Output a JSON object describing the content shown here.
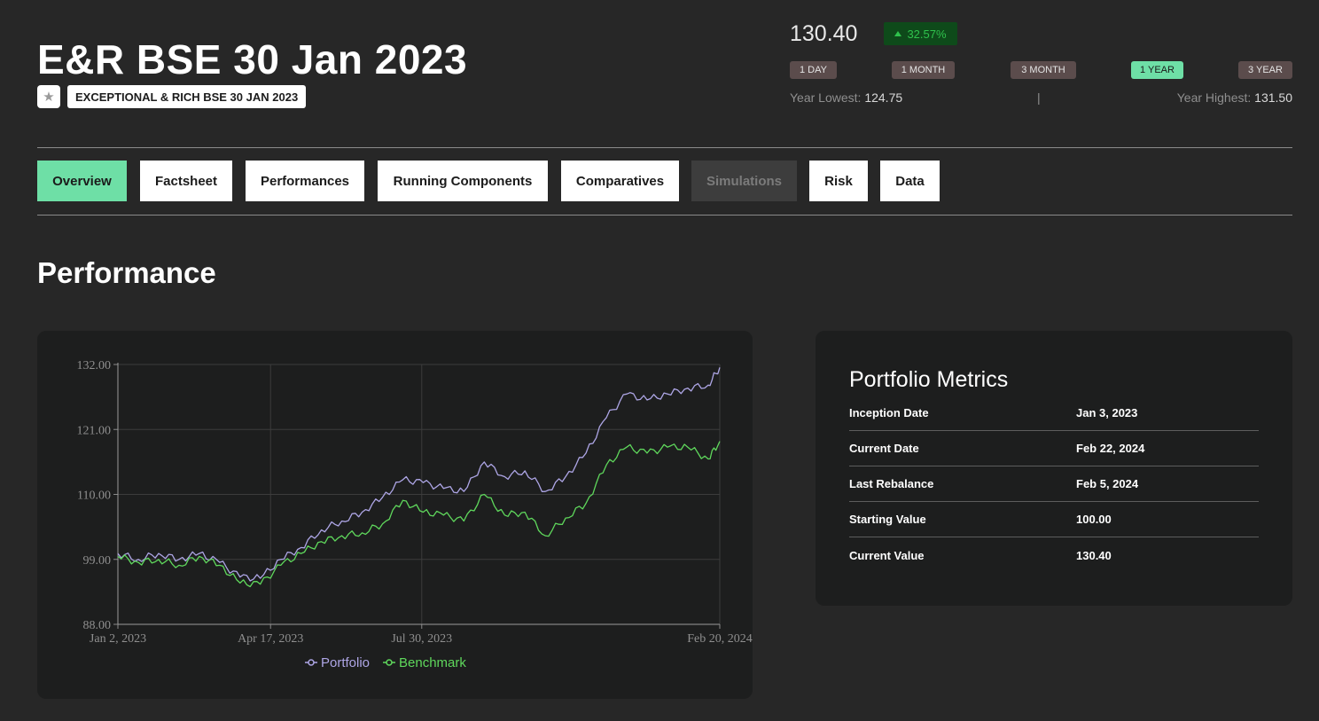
{
  "header": {
    "title": "E&R BSE 30 Jan 2023",
    "subtitle": "EXCEPTIONAL & RICH BSE 30 JAN 2023",
    "favorite_icon": "star-icon"
  },
  "quote": {
    "price": "130.40",
    "change": "32.57%",
    "change_color": "#2fc24c",
    "ranges": [
      "1 DAY",
      "1 MONTH",
      "3 MONTH",
      "1 YEAR",
      "3 YEAR"
    ],
    "active_range": "1 YEAR",
    "year_lowest_label": "Year Lowest:",
    "year_lowest_value": "124.75",
    "separator": "|",
    "year_highest_label": "Year Highest:",
    "year_highest_value": "131.50"
  },
  "tabs": [
    {
      "label": "Overview",
      "state": "active"
    },
    {
      "label": "Factsheet",
      "state": "normal"
    },
    {
      "label": "Performances",
      "state": "normal"
    },
    {
      "label": "Running Components",
      "state": "normal"
    },
    {
      "label": "Comparatives",
      "state": "normal"
    },
    {
      "label": "Simulations",
      "state": "disabled"
    },
    {
      "label": "Risk",
      "state": "normal"
    },
    {
      "label": "Data",
      "state": "normal"
    }
  ],
  "section_title": "Performance",
  "chart_data": {
    "type": "line",
    "xlabel": "",
    "ylabel": "",
    "ylim": [
      88,
      132
    ],
    "yticks": [
      "132.00",
      "121.00",
      "110.00",
      "99.00",
      "88.00"
    ],
    "xticks": [
      "Jan 2, 2023",
      "Apr 17, 2023",
      "Jul 30, 2023",
      "Feb 20, 2024"
    ],
    "x_start": "2023-01-02",
    "x_end": "2024-02-20",
    "grid": true,
    "legend": "bottom",
    "colors": {
      "Portfolio": "#aea6e6",
      "Benchmark": "#5fd85c"
    },
    "x": [
      "2023-01-02",
      "2023-01-16",
      "2023-01-30",
      "2023-02-13",
      "2023-02-27",
      "2023-03-13",
      "2023-03-27",
      "2023-04-10",
      "2023-04-24",
      "2023-05-08",
      "2023-05-22",
      "2023-06-05",
      "2023-06-19",
      "2023-07-03",
      "2023-07-17",
      "2023-07-31",
      "2023-08-14",
      "2023-08-28",
      "2023-09-11",
      "2023-09-25",
      "2023-10-09",
      "2023-10-23",
      "2023-11-06",
      "2023-11-20",
      "2023-12-04",
      "2023-12-18",
      "2024-01-01",
      "2024-01-15",
      "2024-01-29",
      "2024-02-12",
      "2024-02-20"
    ],
    "series": [
      {
        "name": "Portfolio",
        "values": [
          100,
          99,
          100,
          99,
          100,
          98.5,
          96,
          95.8,
          99,
          101,
          104,
          105.5,
          107,
          109.5,
          112.5,
          112,
          111,
          110.5,
          115.5,
          113,
          114,
          110.5,
          113,
          117,
          123,
          127,
          126,
          127,
          128,
          128.5,
          131.5
        ]
      },
      {
        "name": "Benchmark",
        "values": [
          99.5,
          98.5,
          99,
          98,
          99.5,
          98,
          95,
          94.8,
          98,
          100,
          102,
          103,
          103.5,
          105,
          109,
          107,
          106.5,
          105.5,
          110,
          106.5,
          107,
          103,
          106,
          108.5,
          115,
          118,
          117,
          118,
          118,
          116,
          119
        ]
      }
    ]
  },
  "metrics": {
    "title": "Portfolio Metrics",
    "rows": [
      {
        "label": "Inception Date",
        "value": "Jan 3, 2023"
      },
      {
        "label": "Current Date",
        "value": "Feb 22, 2024"
      },
      {
        "label": "Last Rebalance",
        "value": "Feb 5, 2024"
      },
      {
        "label": "Starting Value",
        "value": "100.00"
      },
      {
        "label": "Current Value",
        "value": "130.40"
      }
    ]
  }
}
